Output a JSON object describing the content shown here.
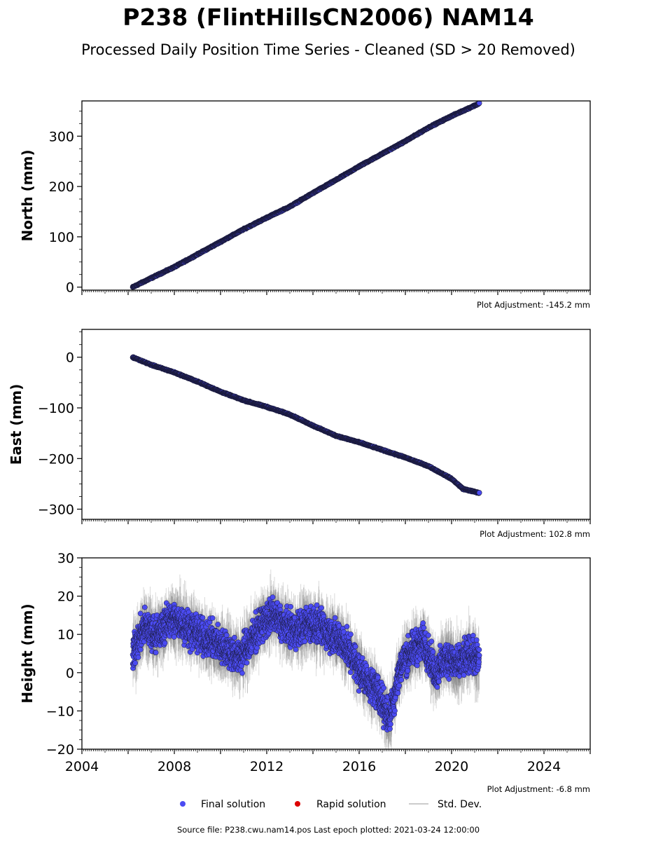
{
  "title": "P238 (FlintHillsCN2006) NAM14",
  "subtitle": "Processed Daily Position Time Series - Cleaned (SD > 20 Removed)",
  "colors": {
    "final": "#4b4bf2",
    "rapid": "#dd0000",
    "stddev": "#bbbbbb",
    "edge": "#1a1a3a"
  },
  "legend": {
    "final": "Final solution",
    "rapid": "Rapid solution",
    "stddev": "Std. Dev."
  },
  "footer": "Source file: P238.cwu.nam14.pos  Last epoch plotted: 2021-03-24 12:00:00",
  "chart_data": [
    {
      "type": "scatter",
      "ylabel": "North (mm)",
      "adjustment": "Plot Adjustment: -145.2 mm",
      "xlim": [
        2004,
        2026
      ],
      "ylim": [
        -6,
        370
      ],
      "yticks": [
        0,
        100,
        200,
        300
      ],
      "series": [
        {
          "x": [
            2006.2,
            2007,
            2008,
            2009,
            2010,
            2011,
            2012,
            2013,
            2014,
            2015,
            2016,
            2017,
            2018,
            2019,
            2020,
            2021.2
          ],
          "values": [
            0,
            18,
            40,
            65,
            90,
            115,
            138,
            160,
            187,
            213,
            240,
            265,
            290,
            317,
            340,
            365
          ]
        }
      ]
    },
    {
      "type": "scatter",
      "ylabel": "East (mm)",
      "adjustment": "Plot Adjustment: 102.8 mm",
      "xlim": [
        2004,
        2026
      ],
      "ylim": [
        -320,
        55
      ],
      "yticks": [
        -300,
        -200,
        -100,
        0
      ],
      "series": [
        {
          "x": [
            2006.2,
            2007,
            2008,
            2009,
            2010,
            2011,
            2012,
            2013,
            2014,
            2015,
            2016,
            2017,
            2018,
            2019,
            2020,
            2020.5,
            2021.2
          ],
          "values": [
            0,
            -15,
            -30,
            -48,
            -68,
            -85,
            -98,
            -113,
            -135,
            -155,
            -168,
            -183,
            -198,
            -215,
            -240,
            -260,
            -268
          ]
        }
      ]
    },
    {
      "type": "scatter",
      "ylabel": "Height (mm)",
      "adjustment": "Plot Adjustment: -6.8 mm",
      "xlim": [
        2004,
        2026
      ],
      "ylim": [
        -20,
        30
      ],
      "yticks": [
        -20,
        -10,
        0,
        10,
        20,
        30
      ],
      "xticks": [
        2004,
        2008,
        2012,
        2016,
        2020,
        2024
      ],
      "series": [
        {
          "x": [
            2006.2,
            2006.7,
            2007.3,
            2007.8,
            2008.3,
            2008.8,
            2009.3,
            2009.8,
            2010.3,
            2010.8,
            2011.3,
            2011.8,
            2012.3,
            2012.8,
            2013.3,
            2013.8,
            2014.3,
            2014.8,
            2015.3,
            2015.8,
            2016.3,
            2016.8,
            2017.3,
            2017.8,
            2018.3,
            2018.8,
            2019.3,
            2019.8,
            2020.3,
            2020.8,
            2021.2
          ],
          "values": [
            5,
            12,
            10,
            14,
            13,
            11,
            9,
            8,
            6,
            4,
            8,
            13,
            15,
            12,
            11,
            13,
            12,
            10,
            8,
            3,
            -2,
            -5,
            -12,
            2,
            6,
            8,
            0,
            4,
            2,
            5,
            3
          ]
        }
      ]
    }
  ]
}
